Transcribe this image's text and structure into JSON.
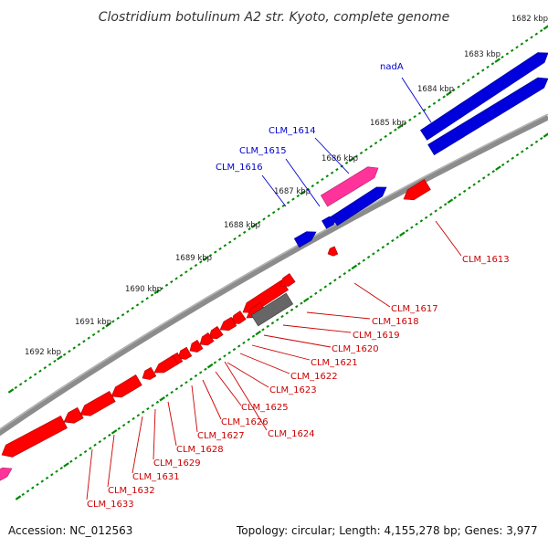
{
  "title": "Clostridium botulinum A2 str. Kyoto, complete genome",
  "footer": {
    "accession": "Accession: NC_012563",
    "summary": "Topology: circular; Length: 4,155,278 bp; Genes: 3,977"
  },
  "ruler_labels": [
    "1682 kbp",
    "1683 kbp",
    "1684 kbp",
    "1685 kbp",
    "1686 kbp",
    "1687 kbp",
    "1688 kbp",
    "1689 kbp",
    "1690 kbp",
    "1691 kbp",
    "1692 kbp"
  ],
  "colors": {
    "forward_gene": "#0000dd",
    "reverse_gene": "#ff0000",
    "rna_gene": "#ff3399",
    "other_gene": "#666666",
    "forward_label": "#0000cc",
    "reverse_label": "#cc0000",
    "ticks": "#008800",
    "backbone": "#8c8c8c"
  },
  "forward_labels": [
    "nadA",
    "CLM_1614",
    "CLM_1615",
    "CLM_1616"
  ],
  "reverse_labels": [
    "CLM_1613",
    "CLM_1617",
    "CLM_1618",
    "CLM_1619",
    "CLM_1620",
    "CLM_1621",
    "CLM_1622",
    "CLM_1623",
    "CLM_1625",
    "CLM_1626",
    "CLM_1624",
    "CLM_1627",
    "CLM_1628",
    "CLM_1629",
    "CLM_1631",
    "CLM_1632",
    "CLM_1633"
  ]
}
